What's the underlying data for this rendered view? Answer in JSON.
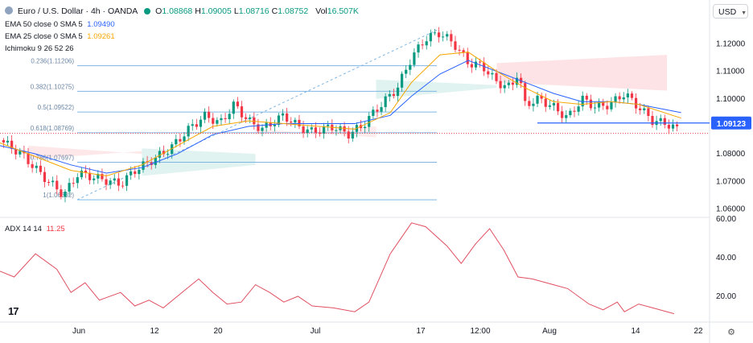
{
  "header": {
    "symbol": "Euro / U.S. Dollar · 4h · OANDA",
    "ohlc": [
      {
        "k": "O",
        "v": "1.08868"
      },
      {
        "k": "H",
        "v": "1.09005"
      },
      {
        "k": "L",
        "v": "1.08716"
      },
      {
        "k": "C",
        "v": "1.08752"
      }
    ],
    "vol_label": "Vol",
    "vol_value": "16.507K"
  },
  "indicators": [
    {
      "name": "EMA 50 close 0 SMA 5",
      "value": "1.09490",
      "color": "#2962ff"
    },
    {
      "name": "EMA 25 close 0 SMA 5",
      "value": "1.09261",
      "color": "#f7a600"
    },
    {
      "name": "Ichimoku 9 26 52 26",
      "value": "",
      "color": "#131722"
    }
  ],
  "currency_button": "USD",
  "adx": {
    "label": "ADX 14 14",
    "value": "11.25",
    "color": "#f23645"
  },
  "colors": {
    "up": "#089981",
    "down": "#f23645",
    "ema50": "#2962ff",
    "ema25": "#f7a600",
    "fib": "#7fb6e4",
    "hline": "#2962ff",
    "adx": "#e04f5f"
  },
  "chart_data": {
    "type": "candlestick",
    "price_axis": {
      "ticks": [
        1.12,
        1.11,
        1.1,
        1.08,
        1.07,
        1.06
      ],
      "labels": [
        "1.12000",
        "1.11000",
        "1.10000",
        "1.08000",
        "1.07000",
        "1.06000"
      ],
      "ylim": [
        1.0575,
        1.1295
      ]
    },
    "time_axis": {
      "labels": [
        "Jun",
        "12",
        "20",
        "Jul",
        "17",
        "12:00",
        "Aug",
        "14",
        "22"
      ]
    },
    "current_price": {
      "label": "1.09123",
      "value": 1.09123
    },
    "fibonacci": [
      {
        "label": "0.236(1.11206)",
        "value": 1.11206
      },
      {
        "label": "0.382(1.10275)",
        "value": 1.10275
      },
      {
        "label": "0.5(1.09522)",
        "value": 1.09522
      },
      {
        "label": "0.618(1.08769)",
        "value": 1.08769
      },
      {
        "label": "0.786(1.07697)",
        "value": 1.07697
      },
      {
        "label": "1(1.06332)",
        "value": 1.06332
      }
    ],
    "close_path": [
      [
        0,
        1.085
      ],
      [
        0.03,
        1.08
      ],
      [
        0.06,
        1.072
      ],
      [
        0.09,
        1.065
      ],
      [
        0.11,
        1.073
      ],
      [
        0.14,
        1.071
      ],
      [
        0.17,
        1.069
      ],
      [
        0.19,
        1.074
      ],
      [
        0.21,
        1.077
      ],
      [
        0.24,
        1.082
      ],
      [
        0.27,
        1.09
      ],
      [
        0.29,
        1.094
      ],
      [
        0.31,
        1.091
      ],
      [
        0.33,
        1.098
      ],
      [
        0.35,
        1.092
      ],
      [
        0.37,
        1.089
      ],
      [
        0.4,
        1.094
      ],
      [
        0.42,
        1.09
      ],
      [
        0.44,
        1.088
      ],
      [
        0.47,
        1.09
      ],
      [
        0.49,
        1.087
      ],
      [
        0.51,
        1.09
      ],
      [
        0.53,
        1.096
      ],
      [
        0.56,
        1.104
      ],
      [
        0.58,
        1.115
      ],
      [
        0.6,
        1.122
      ],
      [
        0.62,
        1.124
      ],
      [
        0.64,
        1.12
      ],
      [
        0.66,
        1.113
      ],
      [
        0.68,
        1.112
      ],
      [
        0.7,
        1.106
      ],
      [
        0.72,
        1.104
      ],
      [
        0.73,
        1.11
      ],
      [
        0.74,
        1.098
      ],
      [
        0.76,
        1.1
      ],
      [
        0.78,
        1.097
      ],
      [
        0.8,
        1.093
      ],
      [
        0.82,
        1.1
      ],
      [
        0.84,
        1.097
      ],
      [
        0.86,
        1.098
      ],
      [
        0.88,
        1.102
      ],
      [
        0.9,
        1.097
      ],
      [
        0.92,
        1.092
      ],
      [
        0.94,
        1.091
      ],
      [
        0.96,
        1.088
      ]
    ],
    "ema50_path": [
      [
        0,
        1.083
      ],
      [
        0.05,
        1.08
      ],
      [
        0.1,
        1.076
      ],
      [
        0.15,
        1.073
      ],
      [
        0.2,
        1.075
      ],
      [
        0.25,
        1.08
      ],
      [
        0.3,
        1.087
      ],
      [
        0.35,
        1.09
      ],
      [
        0.4,
        1.091
      ],
      [
        0.45,
        1.091
      ],
      [
        0.5,
        1.091
      ],
      [
        0.55,
        1.094
      ],
      [
        0.58,
        1.101
      ],
      [
        0.62,
        1.109
      ],
      [
        0.66,
        1.114
      ],
      [
        0.7,
        1.11
      ],
      [
        0.74,
        1.106
      ],
      [
        0.78,
        1.102
      ],
      [
        0.82,
        1.099
      ],
      [
        0.86,
        1.099
      ],
      [
        0.9,
        1.098
      ],
      [
        0.96,
        1.095
      ]
    ],
    "ema25_path": [
      [
        0,
        1.084
      ],
      [
        0.05,
        1.079
      ],
      [
        0.1,
        1.074
      ],
      [
        0.15,
        1.072
      ],
      [
        0.2,
        1.076
      ],
      [
        0.25,
        1.083
      ],
      [
        0.3,
        1.09
      ],
      [
        0.35,
        1.092
      ],
      [
        0.4,
        1.091
      ],
      [
        0.45,
        1.09
      ],
      [
        0.5,
        1.089
      ],
      [
        0.55,
        1.095
      ],
      [
        0.58,
        1.106
      ],
      [
        0.62,
        1.116
      ],
      [
        0.66,
        1.117
      ],
      [
        0.7,
        1.11
      ],
      [
        0.74,
        1.104
      ],
      [
        0.78,
        1.099
      ],
      [
        0.82,
        1.098
      ],
      [
        0.86,
        1.099
      ],
      [
        0.9,
        1.098
      ],
      [
        0.96,
        1.093
      ]
    ],
    "adx_axis": {
      "ticks": [
        60,
        40,
        20
      ],
      "labels": [
        "60.00",
        "40.00",
        "20.00"
      ],
      "ylim": [
        10,
        60
      ]
    },
    "adx_path": [
      [
        0,
        33
      ],
      [
        0.02,
        30
      ],
      [
        0.05,
        42
      ],
      [
        0.08,
        34
      ],
      [
        0.1,
        22
      ],
      [
        0.12,
        27
      ],
      [
        0.14,
        18
      ],
      [
        0.17,
        22
      ],
      [
        0.19,
        15
      ],
      [
        0.21,
        18
      ],
      [
        0.23,
        14
      ],
      [
        0.26,
        23
      ],
      [
        0.28,
        29
      ],
      [
        0.3,
        22
      ],
      [
        0.32,
        16
      ],
      [
        0.34,
        17
      ],
      [
        0.36,
        26
      ],
      [
        0.38,
        22
      ],
      [
        0.4,
        17
      ],
      [
        0.42,
        20
      ],
      [
        0.44,
        15
      ],
      [
        0.47,
        14
      ],
      [
        0.5,
        12
      ],
      [
        0.52,
        17
      ],
      [
        0.55,
        42
      ],
      [
        0.58,
        58
      ],
      [
        0.6,
        56
      ],
      [
        0.63,
        46
      ],
      [
        0.65,
        37
      ],
      [
        0.67,
        47
      ],
      [
        0.69,
        55
      ],
      [
        0.71,
        44
      ],
      [
        0.73,
        30
      ],
      [
        0.75,
        29
      ],
      [
        0.78,
        26
      ],
      [
        0.8,
        24
      ],
      [
        0.83,
        16
      ],
      [
        0.85,
        13
      ],
      [
        0.87,
        17
      ],
      [
        0.88,
        12
      ],
      [
        0.9,
        16
      ],
      [
        0.92,
        14
      ],
      [
        0.95,
        11
      ]
    ]
  }
}
